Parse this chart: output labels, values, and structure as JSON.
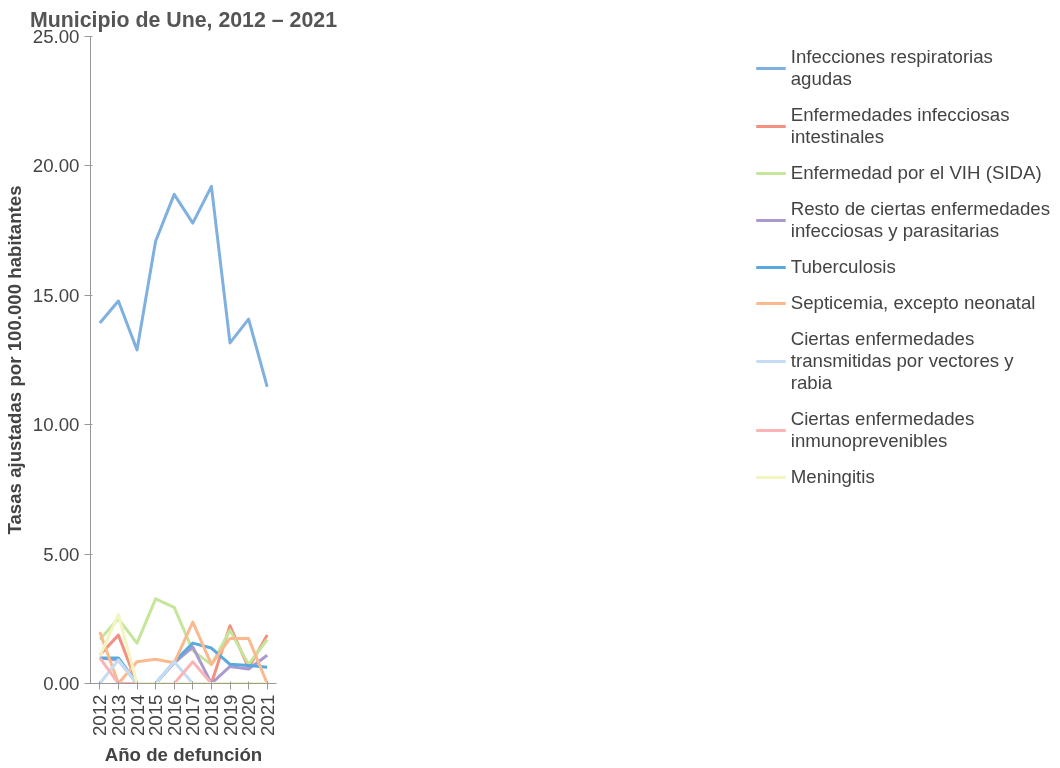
{
  "chart_data": {
    "type": "line",
    "title": "Municipio de Une, 2012 – 2021",
    "xlabel": "Año de defunción",
    "ylabel": "Tasas ajustadas por 100.000 habitantes",
    "categories": [
      "2012",
      "2013",
      "2014",
      "2015",
      "2016",
      "2017",
      "2018",
      "2019",
      "2020",
      "2021"
    ],
    "ylim": [
      0,
      25
    ],
    "yticks": [
      {
        "value": 0,
        "label": "0.00"
      },
      {
        "value": 5,
        "label": "5.00"
      },
      {
        "value": 10,
        "label": "10.00"
      },
      {
        "value": 15,
        "label": "15.00"
      },
      {
        "value": 20,
        "label": "20.00"
      },
      {
        "value": 25,
        "label": "25.00"
      }
    ],
    "grid": false,
    "legend": "right",
    "marker": "none",
    "line_style": "solid",
    "series": [
      {
        "name": "Infecciones respiratorias agudas",
        "color": "#7fb0e0",
        "values": [
          13.93,
          14.78,
          12.89,
          17.09,
          18.9,
          17.79,
          19.21,
          13.16,
          14.08,
          11.46
        ]
      },
      {
        "name": "Enfermedades infecciosas intestinales",
        "color": "#f4907f",
        "values": [
          1.1,
          1.87,
          0,
          0,
          0,
          0,
          0,
          2.23,
          0.6,
          1.87
        ]
      },
      {
        "name": "Enfermedad por el VIH (SIDA)",
        "color": "#c4e59a",
        "values": [
          1.7,
          2.5,
          1.56,
          3.27,
          2.94,
          1.27,
          0.73,
          2.06,
          0.74,
          1.7
        ]
      },
      {
        "name": "Resto de ciertas enfermedades infecciosas y parasitarias",
        "color": "#a99bd0",
        "values": [
          0.99,
          0.9,
          0,
          0,
          0.8,
          1.41,
          0,
          0.66,
          0.56,
          1.09
        ]
      },
      {
        "name": "Tuberculosis",
        "color": "#5aa9de",
        "values": [
          0.99,
          0.99,
          0,
          0,
          0.84,
          1.56,
          1.37,
          0.74,
          0.7,
          0.63
        ]
      },
      {
        "name": "Septicemia, excepto neonatal",
        "color": "#fbb98f",
        "values": [
          1.99,
          0,
          0.84,
          0.94,
          0.8,
          2.37,
          0.74,
          1.74,
          1.74,
          0
        ]
      },
      {
        "name": "Ciertas enfermedades transmitidas por vectores y rabia",
        "color": "#c5dcf3",
        "values": [
          0,
          0.91,
          0,
          0,
          0.84,
          0,
          0,
          0,
          0,
          0
        ]
      },
      {
        "name": "Ciertas enfermedades inmunoprevenibles",
        "color": "#f9b5b5",
        "values": [
          0.99,
          0,
          0,
          0,
          0,
          0.84,
          0,
          0,
          0,
          0
        ]
      },
      {
        "name": "Meningitis",
        "color": "#f3f5c0",
        "values": [
          1.06,
          2.66,
          0,
          0,
          0,
          0,
          0,
          0,
          0,
          0
        ]
      }
    ]
  }
}
